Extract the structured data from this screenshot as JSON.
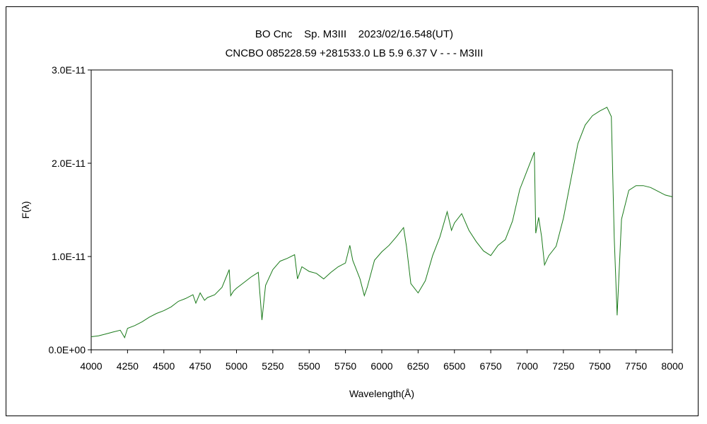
{
  "chart_data": {
    "type": "line",
    "title": "BO Cnc    Sp. M3III    2023/02/16.548(UT)",
    "subtitle": "CNCBO 085228.59 +281533.0 LB 5.9 6.37 V - - - M3III",
    "xlabel": "Wavelength(Å)",
    "ylabel": "F(λ)",
    "xlim": [
      4000,
      8000
    ],
    "ylim": [
      0,
      3e-11
    ],
    "x_ticks": [
      4000,
      4250,
      4500,
      4750,
      5000,
      5250,
      5500,
      5750,
      6000,
      6250,
      6500,
      6750,
      7000,
      7250,
      7500,
      7750,
      8000
    ],
    "y_ticks": [
      0,
      1e-11,
      2e-11,
      3e-11
    ],
    "x_tick_labels": [
      "4000",
      "4250",
      "4500",
      "4750",
      "5000",
      "5250",
      "5500",
      "5750",
      "6000",
      "6250",
      "6500",
      "6750",
      "7000",
      "7250",
      "7500",
      "7750",
      "8000"
    ],
    "y_tick_labels": [
      "0.0E+00",
      "1.0E-11",
      "2.0E-11",
      "3.0E-11"
    ],
    "grid": false,
    "legend": "none",
    "series": [
      {
        "color": "#1a7a1a",
        "points": [
          [
            4000,
            1.4e-12
          ],
          [
            4050,
            1.5e-12
          ],
          [
            4100,
            1.7e-12
          ],
          [
            4150,
            1.9e-12
          ],
          [
            4200,
            2.1e-12
          ],
          [
            4230,
            1.3e-12
          ],
          [
            4250,
            2.3e-12
          ],
          [
            4300,
            2.6e-12
          ],
          [
            4350,
            3e-12
          ],
          [
            4400,
            3.5e-12
          ],
          [
            4450,
            3.9e-12
          ],
          [
            4500,
            4.2e-12
          ],
          [
            4550,
            4.6e-12
          ],
          [
            4600,
            5.2e-12
          ],
          [
            4650,
            5.5e-12
          ],
          [
            4700,
            5.9e-12
          ],
          [
            4720,
            5e-12
          ],
          [
            4750,
            6.1e-12
          ],
          [
            4780,
            5.3e-12
          ],
          [
            4800,
            5.6e-12
          ],
          [
            4850,
            5.9e-12
          ],
          [
            4900,
            6.7e-12
          ],
          [
            4950,
            8.6e-12
          ],
          [
            4960,
            5.8e-12
          ],
          [
            4980,
            6.3e-12
          ],
          [
            5000,
            6.6e-12
          ],
          [
            5050,
            7.2e-12
          ],
          [
            5100,
            7.8e-12
          ],
          [
            5150,
            8.3e-12
          ],
          [
            5175,
            3.2e-12
          ],
          [
            5200,
            6.9e-12
          ],
          [
            5250,
            8.6e-12
          ],
          [
            5300,
            9.5e-12
          ],
          [
            5350,
            9.8e-12
          ],
          [
            5400,
            1.02e-11
          ],
          [
            5420,
            7.6e-12
          ],
          [
            5450,
            8.9e-12
          ],
          [
            5500,
            8.4e-12
          ],
          [
            5550,
            8.2e-12
          ],
          [
            5600,
            7.6e-12
          ],
          [
            5650,
            8.3e-12
          ],
          [
            5700,
            8.9e-12
          ],
          [
            5750,
            9.3e-12
          ],
          [
            5780,
            1.12e-11
          ],
          [
            5800,
            9.6e-12
          ],
          [
            5850,
            7.6e-12
          ],
          [
            5880,
            5.8e-12
          ],
          [
            5900,
            6.7e-12
          ],
          [
            5950,
            9.6e-12
          ],
          [
            6000,
            1.05e-11
          ],
          [
            6050,
            1.12e-11
          ],
          [
            6100,
            1.21e-11
          ],
          [
            6150,
            1.31e-11
          ],
          [
            6170,
            1.11e-11
          ],
          [
            6200,
            7.1e-12
          ],
          [
            6250,
            6.1e-12
          ],
          [
            6300,
            7.4e-12
          ],
          [
            6350,
            1.01e-11
          ],
          [
            6400,
            1.21e-11
          ],
          [
            6450,
            1.48e-11
          ],
          [
            6480,
            1.28e-11
          ],
          [
            6500,
            1.36e-11
          ],
          [
            6550,
            1.46e-11
          ],
          [
            6600,
            1.28e-11
          ],
          [
            6650,
            1.16e-11
          ],
          [
            6700,
            1.06e-11
          ],
          [
            6750,
            1.01e-11
          ],
          [
            6800,
            1.12e-11
          ],
          [
            6850,
            1.18e-11
          ],
          [
            6900,
            1.38e-11
          ],
          [
            6950,
            1.72e-11
          ],
          [
            7000,
            1.92e-11
          ],
          [
            7050,
            2.12e-11
          ],
          [
            7060,
            1.25e-11
          ],
          [
            7080,
            1.42e-11
          ],
          [
            7100,
            1.21e-11
          ],
          [
            7120,
            9.1e-12
          ],
          [
            7150,
            1.01e-11
          ],
          [
            7200,
            1.11e-11
          ],
          [
            7250,
            1.41e-11
          ],
          [
            7300,
            1.81e-11
          ],
          [
            7350,
            2.21e-11
          ],
          [
            7400,
            2.41e-11
          ],
          [
            7450,
            2.51e-11
          ],
          [
            7500,
            2.56e-11
          ],
          [
            7550,
            2.6e-11
          ],
          [
            7580,
            2.5e-11
          ],
          [
            7600,
            1.2e-11
          ],
          [
            7620,
            3.7e-12
          ],
          [
            7650,
            1.4e-11
          ],
          [
            7700,
            1.71e-11
          ],
          [
            7750,
            1.76e-11
          ],
          [
            7800,
            1.76e-11
          ],
          [
            7850,
            1.74e-11
          ],
          [
            7900,
            1.7e-11
          ],
          [
            7950,
            1.66e-11
          ],
          [
            8000,
            1.64e-11
          ]
        ]
      }
    ]
  }
}
